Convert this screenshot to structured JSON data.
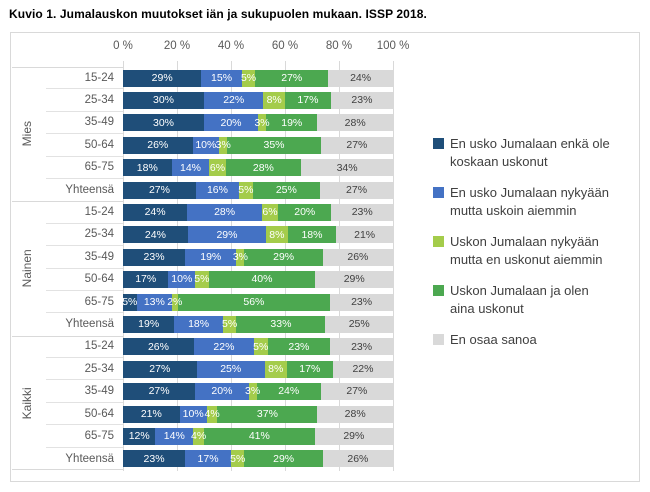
{
  "title": "Kuvio 1. Jumalauskon muutokset iän ja sukupuolen mukaan. ISSP 2018.",
  "colors": {
    "frame_border": "#D9D9D9",
    "grid": "#D9D9D9",
    "axis_text": "#595959",
    "category_text": "#595959",
    "title_text": "#000000",
    "label_on_color": "#FFFFFF",
    "label_on_gray": "#404040"
  },
  "chart_data": {
    "type": "bar",
    "stacked": true,
    "orientation": "horizontal",
    "title": "Kuvio 1. Jumalauskon muutokset iän ja sukupuolen mukaan. ISSP 2018.",
    "xlim": [
      0,
      100
    ],
    "x_ticks": [
      "0 %",
      "20 %",
      "40 %",
      "60 %",
      "80 %",
      "100 %"
    ],
    "grid": true,
    "legend_position": "right",
    "data_label_format": "{value}%",
    "series": [
      {
        "name": "En usko Jumalaan enkä ole koskaan uskonut",
        "color": "#1F4E79"
      },
      {
        "name": "En usko Jumalaan nykyään mutta uskoin aiemmin",
        "color": "#4472C4"
      },
      {
        "name": "Uskon Jumalaan nykyään mutta en uskonut aiemmin",
        "color": "#A4CC4B"
      },
      {
        "name": "Uskon Jumalaan ja olen aina uskonut",
        "color": "#4CA850"
      },
      {
        "name": "En osaa sanoa",
        "color": "#D9D9D9"
      }
    ],
    "groups": [
      {
        "label": "Mies",
        "rows": [
          {
            "label": "15-24",
            "values": [
              29,
              15,
              5,
              27,
              24
            ]
          },
          {
            "label": "25-34",
            "values": [
              30,
              22,
              8,
              17,
              23
            ]
          },
          {
            "label": "35-49",
            "values": [
              30,
              20,
              3,
              19,
              28
            ]
          },
          {
            "label": "50-64",
            "values": [
              26,
              10,
              3,
              35,
              27
            ]
          },
          {
            "label": "65-75",
            "values": [
              18,
              14,
              6,
              28,
              34
            ]
          },
          {
            "label": "Yhteensä",
            "values": [
              27,
              16,
              5,
              25,
              27
            ]
          }
        ]
      },
      {
        "label": "Nainen",
        "rows": [
          {
            "label": "15-24",
            "values": [
              24,
              28,
              6,
              20,
              23
            ]
          },
          {
            "label": "25-34",
            "values": [
              24,
              29,
              8,
              18,
              21
            ]
          },
          {
            "label": "35-49",
            "values": [
              23,
              19,
              3,
              29,
              26
            ]
          },
          {
            "label": "50-64",
            "values": [
              17,
              10,
              5,
              40,
              29
            ]
          },
          {
            "label": "65-75",
            "values": [
              5,
              13,
              2,
              56,
              23
            ]
          },
          {
            "label": "Yhteensä",
            "values": [
              19,
              18,
              5,
              33,
              25
            ]
          }
        ]
      },
      {
        "label": "Kaikki",
        "rows": [
          {
            "label": "15-24",
            "values": [
              26,
              22,
              5,
              23,
              23
            ]
          },
          {
            "label": "25-34",
            "values": [
              27,
              25,
              8,
              17,
              22
            ]
          },
          {
            "label": "35-49",
            "values": [
              27,
              20,
              3,
              24,
              27
            ]
          },
          {
            "label": "50-64",
            "values": [
              21,
              10,
              4,
              37,
              28
            ]
          },
          {
            "label": "65-75",
            "values": [
              12,
              14,
              4,
              41,
              29
            ]
          },
          {
            "label": "Yhteensä",
            "values": [
              23,
              17,
              5,
              29,
              26
            ]
          }
        ]
      }
    ]
  }
}
